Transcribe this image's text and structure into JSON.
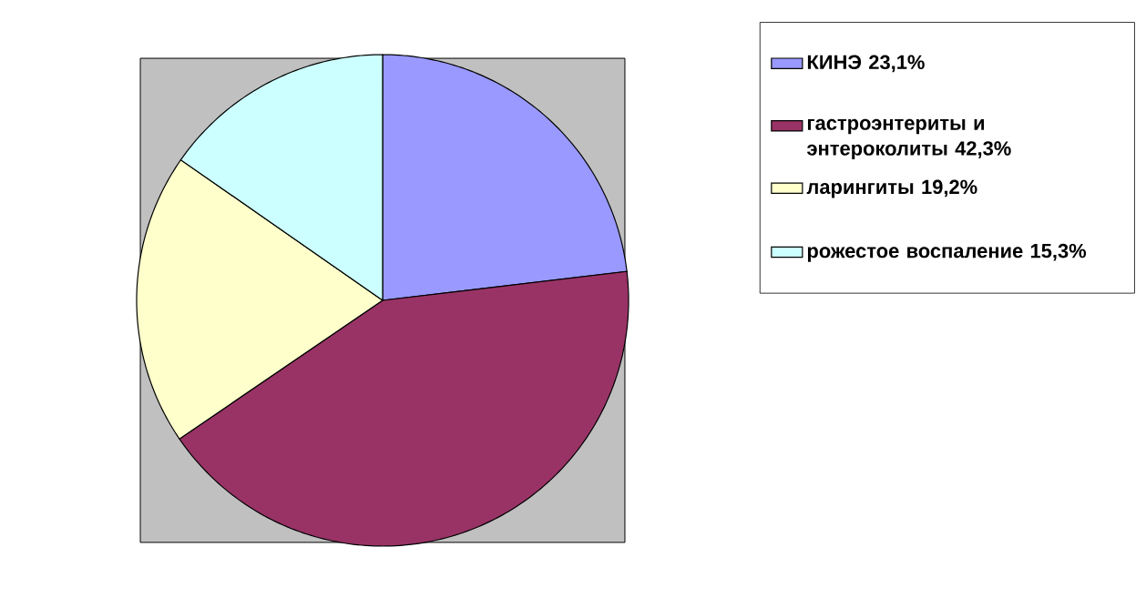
{
  "chart_data": {
    "type": "pie",
    "categories": [
      "КИНЭ 23,1%",
      "гастроэнтериты и энтероколиты 42,3%",
      "ларингиты 19,2%",
      "рожестое воспаление 15,3%"
    ],
    "values": [
      23.1,
      42.3,
      19.2,
      15.3
    ],
    "colors": [
      "#9999ff",
      "#993366",
      "#ffffcc",
      "#ccffff"
    ],
    "legend": "right"
  }
}
